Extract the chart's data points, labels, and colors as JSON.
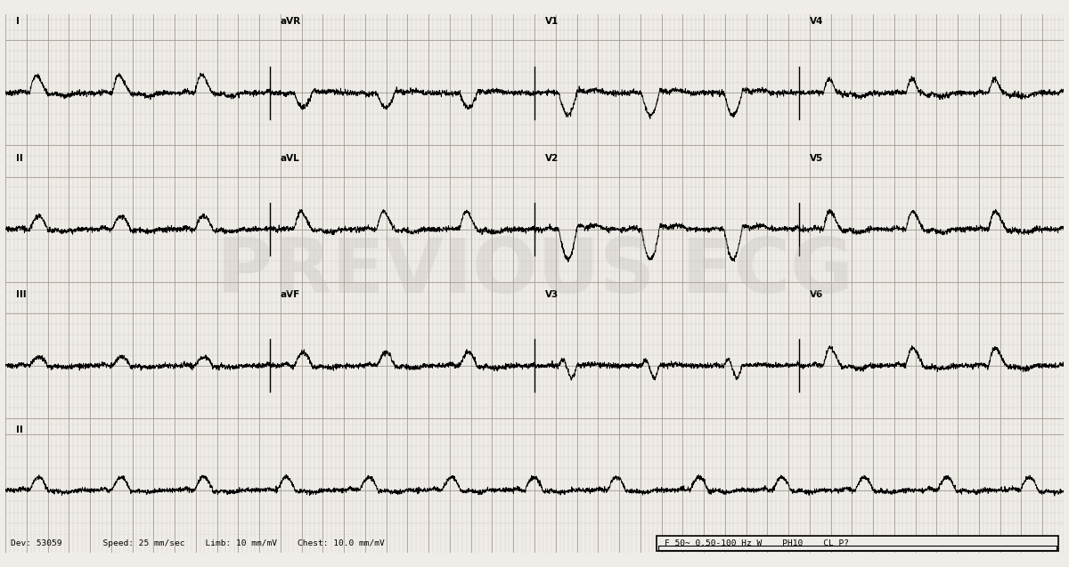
{
  "bg_color": "#f0ede8",
  "grid_minor_color": "#c8c4bc",
  "grid_major_color": "#a09890",
  "ecg_color": "#000000",
  "text_color": "#000000",
  "watermark_color": "#c0bbb5",
  "watermark_text": "PREVIOUS ECG",
  "footer_text": "Dev: 53059        Speed: 25 mm/sec    Limb: 10 mm/mV    Chest: 10.0 mm/mV",
  "footer_right": "F 50~ 0.50-100 Hz W    PH10    CL P?",
  "total_duration": 10.0,
  "col_duration": 2.5,
  "rr_interval": 0.78,
  "fs": 500
}
